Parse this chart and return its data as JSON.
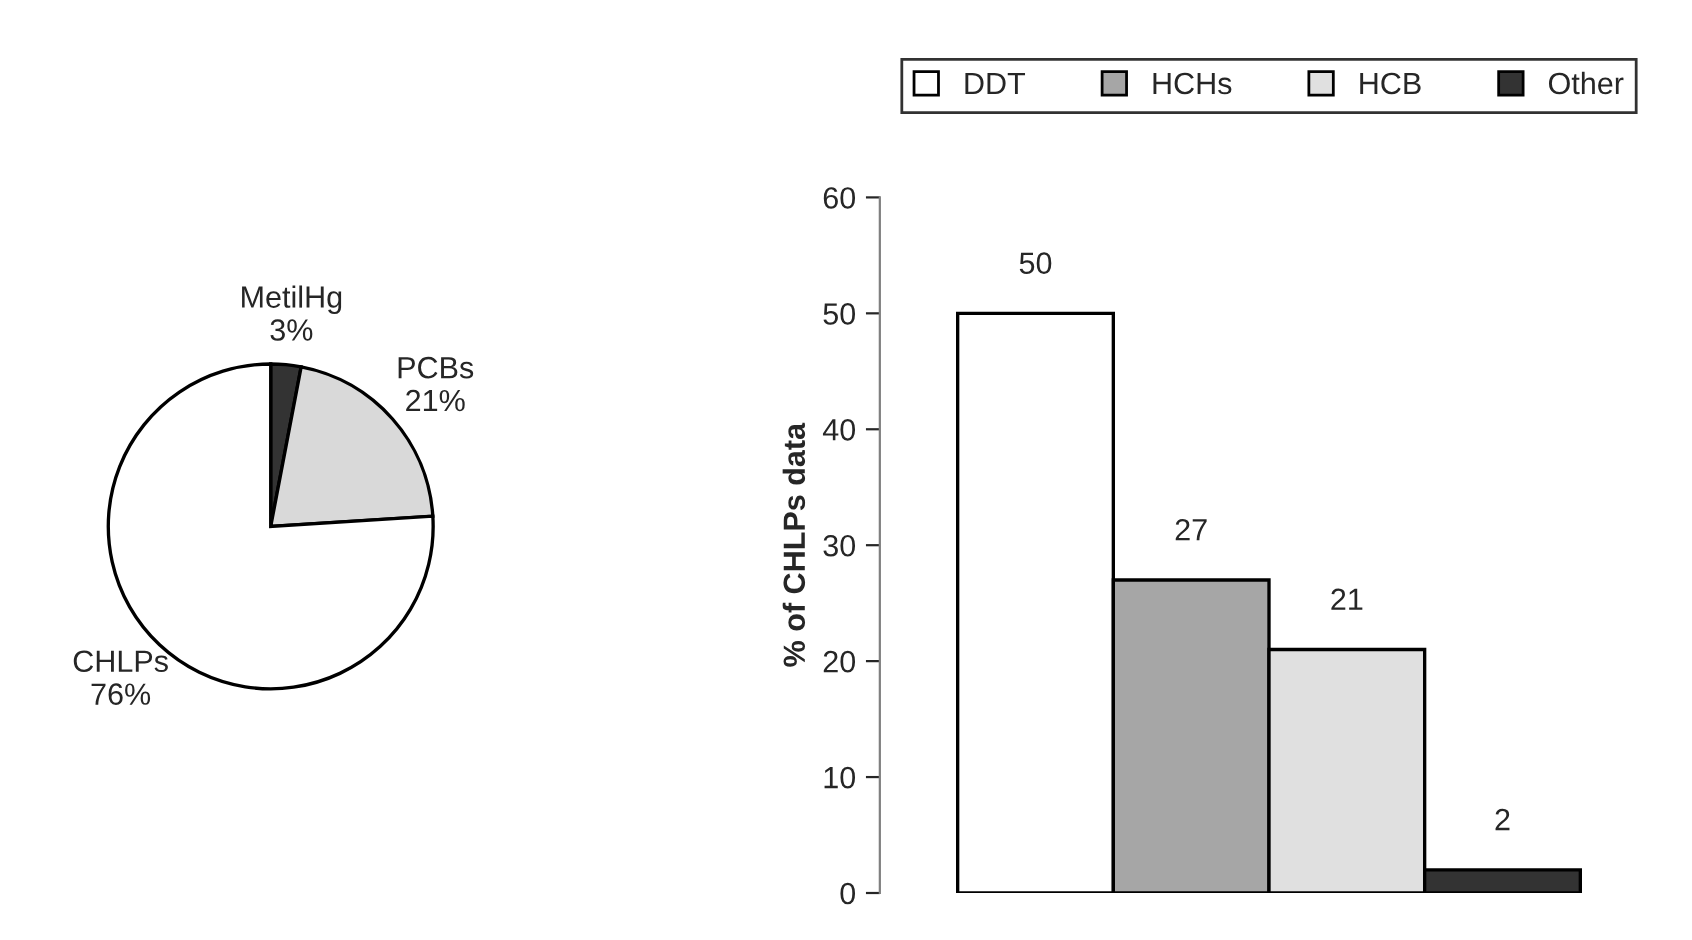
{
  "chart_data": [
    {
      "type": "pie",
      "categories": [
        "MetilHg",
        "PCBs",
        "CHLPs"
      ],
      "values": [
        3,
        21,
        76
      ],
      "colors": [
        "#333333",
        "#d9d9d9",
        "#ffffff"
      ],
      "value_labels": [
        "3%",
        "21%",
        "76%"
      ]
    },
    {
      "type": "bar",
      "categories": [
        null
      ],
      "ylabel": "% of CHLPs data",
      "ylim": [
        0,
        60
      ],
      "yticks": [
        0,
        10,
        20,
        30,
        40,
        50,
        60
      ],
      "legend": "top",
      "data_labels": true,
      "series": [
        {
          "name": "DDT",
          "color": "#ffffff",
          "values": [
            50
          ]
        },
        {
          "name": "HCHs",
          "color": "#a6a6a6",
          "values": [
            27
          ]
        },
        {
          "name": "HCB",
          "color": "#e0e0e0",
          "values": [
            21
          ]
        },
        {
          "name": "Other",
          "color": "#333333",
          "values": [
            2
          ]
        }
      ]
    }
  ]
}
